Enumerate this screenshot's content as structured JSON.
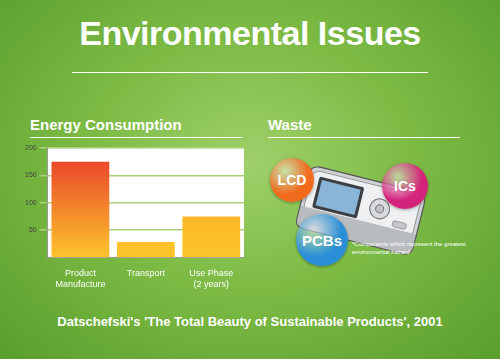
{
  "chart_data": {
    "type": "bar",
    "title": "Energy Consumption",
    "categories": [
      [
        "Product",
        "Manufacture"
      ],
      "Transport",
      [
        "Use Phase",
        "(2 years)"
      ]
    ],
    "values": [
      175,
      28,
      75
    ],
    "colors": [
      "#e8382a",
      "#f7a51d",
      "#f7a51d"
    ],
    "ylim": [
      0,
      200
    ],
    "yticks": [
      50,
      100,
      150,
      200
    ],
    "grid": true
  },
  "slide": {
    "title": "Environmental Issues",
    "source": "Datschefski's 'The Total Beauty of Sustainable Products', 2001",
    "waste": {
      "title": "Waste",
      "components": [
        {
          "label": "LCD",
          "color": "#f26b1d"
        },
        {
          "label": "ICs",
          "color": "#d4237a"
        },
        {
          "label": "PCBs",
          "color": "#2a8fd6"
        }
      ],
      "note": "*Components which represent the greatest environmental hazard"
    }
  }
}
